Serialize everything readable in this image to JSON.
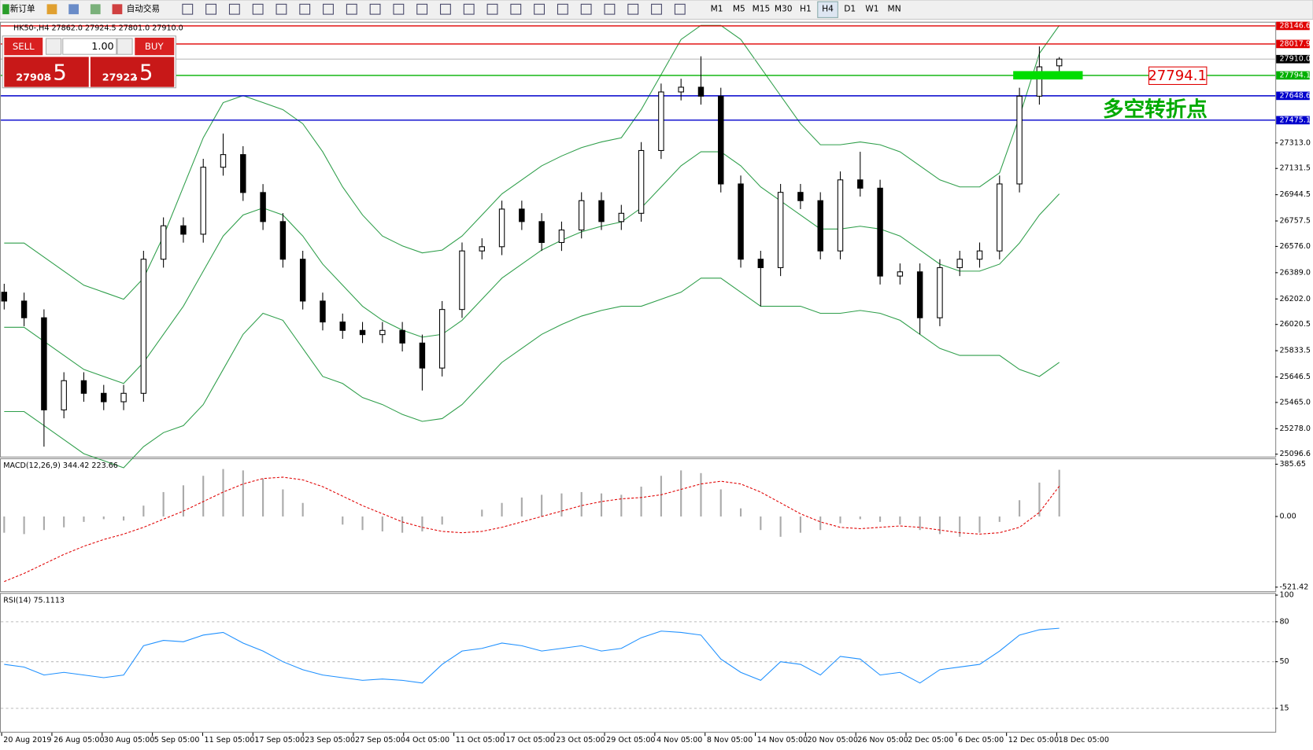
{
  "toolbar": {
    "new_order": "新订单",
    "auto_trading": "自动交易",
    "timeframes": [
      "M1",
      "M5",
      "M15",
      "M30",
      "H1",
      "H4",
      "D1",
      "W1",
      "MN"
    ]
  },
  "trade_panel": {
    "sell": "SELL",
    "buy": "BUY",
    "lot": "1.00",
    "bid_main": "27908",
    "bid_pips": ".5",
    "ask_main": "27922",
    "ask_pips": ".5"
  },
  "chart_data": [
    {
      "type": "candlestick",
      "title": "HK50-,H4  27862.0 27924.5 27801.0 27910.0",
      "x_labels": [
        "20 Aug 2019",
        "26 Aug 05:00",
        "30 Aug 05:00",
        "5 Sep 05:00",
        "11 Sep 05:00",
        "17 Sep 05:00",
        "23 Sep 05:00",
        "27 Sep 05:00",
        "4 Oct 05:00",
        "11 Oct 05:00",
        "17 Oct 05:00",
        "23 Oct 05:00",
        "29 Oct 05:00",
        "4 Nov 05:00",
        "8 Nov 05:00",
        "14 Nov 05:00",
        "20 Nov 05:00",
        "26 Nov 05:00",
        "2 Dec 05:00",
        "6 Dec 05:00",
        "12 Dec 05:00",
        "18 Dec 05:00"
      ],
      "open": [
        26250,
        26187,
        26068,
        25412,
        25620,
        25530,
        25470,
        25530,
        26485,
        26723,
        26663,
        27140,
        27230,
        26960,
        26753,
        26485,
        26187,
        26038,
        25978,
        25948,
        25978,
        25888,
        25710,
        26127,
        26544,
        26574,
        26842,
        26753,
        26604,
        26693,
        26902,
        26753,
        26812,
        27259,
        27676,
        27710,
        27646,
        27021,
        26485,
        26425,
        26961,
        26902,
        26544,
        27050,
        26991,
        26365,
        26395,
        26068,
        26425,
        26485,
        26544,
        27021,
        27646,
        27862
      ],
      "high": [
        26310,
        26247,
        26128,
        25680,
        25680,
        25590,
        25590,
        26545,
        26783,
        26783,
        27200,
        27380,
        27290,
        27020,
        26813,
        26545,
        26247,
        26098,
        26038,
        26038,
        26038,
        25948,
        26187,
        26604,
        26634,
        26902,
        26902,
        26813,
        26753,
        26962,
        26962,
        26872,
        27319,
        27736,
        27770,
        27930,
        27706,
        27081,
        26545,
        27021,
        27021,
        26962,
        27110,
        27250,
        27051,
        26455,
        26455,
        26485,
        26545,
        26604,
        27081,
        27706,
        28000,
        27924.5
      ],
      "low": [
        26127,
        26008,
        25150,
        25352,
        25470,
        25410,
        25410,
        25470,
        26425,
        26603,
        26603,
        27080,
        26900,
        26693,
        26425,
        26127,
        25978,
        25918,
        25888,
        25888,
        25828,
        25550,
        25650,
        26067,
        26484,
        26514,
        26693,
        26544,
        26544,
        26633,
        26693,
        26693,
        26752,
        27199,
        27616,
        27586,
        26961,
        26425,
        26150,
        26365,
        26842,
        26484,
        26484,
        26931,
        26305,
        26305,
        25950,
        26008,
        26365,
        26425,
        26484,
        26961,
        27586,
        27801
      ],
      "close": [
        26187,
        26068,
        25412,
        25620,
        25530,
        25470,
        25530,
        26485,
        26723,
        26663,
        27140,
        27230,
        26960,
        26753,
        26485,
        26187,
        26038,
        25978,
        25948,
        25978,
        25888,
        25710,
        26127,
        26544,
        26574,
        26842,
        26753,
        26604,
        26693,
        26902,
        26753,
        26812,
        27259,
        27676,
        27710,
        27646,
        27021,
        26485,
        26425,
        26961,
        26902,
        26544,
        27050,
        26991,
        26365,
        26395,
        26068,
        26425,
        26485,
        26544,
        27021,
        27646,
        27855,
        27910
      ],
      "bands": {
        "color": "#2e9e4a",
        "upper": [
          26600,
          26600,
          26500,
          26400,
          26300,
          26250,
          26200,
          26350,
          26650,
          27000,
          27350,
          27600,
          27650,
          27600,
          27550,
          27450,
          27250,
          27000,
          26800,
          26650,
          26580,
          26530,
          26550,
          26650,
          26800,
          26950,
          27050,
          27150,
          27220,
          27280,
          27320,
          27350,
          27550,
          27800,
          28050,
          28150,
          28150,
          28050,
          27850,
          27650,
          27450,
          27300,
          27300,
          27320,
          27300,
          27250,
          27150,
          27050,
          27000,
          27000,
          27100,
          27500,
          27950,
          28150
        ],
        "middle": [
          26000,
          26000,
          25900,
          25800,
          25700,
          25650,
          25600,
          25750,
          25950,
          26150,
          26400,
          26650,
          26800,
          26850,
          26800,
          26650,
          26450,
          26300,
          26150,
          26050,
          25980,
          25930,
          25950,
          26050,
          26200,
          26350,
          26450,
          26550,
          26620,
          26680,
          26720,
          26750,
          26850,
          27000,
          27150,
          27250,
          27250,
          27150,
          27000,
          26900,
          26800,
          26700,
          26700,
          26720,
          26700,
          26650,
          26550,
          26450,
          26400,
          26400,
          26450,
          26600,
          26800,
          26950
        ],
        "lower": [
          25400,
          25400,
          25300,
          25200,
          25100,
          25050,
          25000,
          25150,
          25250,
          25300,
          25450,
          25700,
          25950,
          26100,
          26050,
          25850,
          25650,
          25600,
          25500,
          25450,
          25380,
          25330,
          25350,
          25450,
          25600,
          25750,
          25850,
          25950,
          26020,
          26080,
          26120,
          26150,
          26150,
          26200,
          26250,
          26350,
          26350,
          26250,
          26150,
          26150,
          26150,
          26100,
          26100,
          26120,
          26100,
          26050,
          25950,
          25850,
          25800,
          25800,
          25800,
          25700,
          25650,
          25750
        ]
      },
      "ylim": [
        25079,
        28170
      ],
      "yticks": [
        {
          "value": 27313,
          "label": "27313.0"
        },
        27131.5,
        26944.5,
        26757.5,
        {
          "value": 26576,
          "label": "26576.0"
        },
        {
          "value": 26389,
          "label": "26389.0"
        },
        {
          "value": 26202,
          "label": "26202.0"
        },
        26020.5,
        25833.5,
        25646.5,
        {
          "value": 25465,
          "label": "25465.0"
        },
        {
          "value": 25278,
          "label": "25278.0"
        },
        25096.6
      ],
      "levels": [
        {
          "value": 28146.6,
          "color": "#e00000"
        },
        {
          "value": 28017.9,
          "color": "#e00000"
        },
        {
          "value": 27794.1,
          "color": "#00b000"
        },
        {
          "value": 27648.6,
          "color": "#0000cc"
        },
        {
          "value": 27475.1,
          "color": "#0000cc"
        }
      ],
      "last": {
        "value": 27910,
        "label": "27910.0"
      },
      "annotations": {
        "price_box": "27794.1",
        "note": "多空转折点"
      }
    },
    {
      "type": "macd",
      "title": "MACD(12,26,9) 344.42 223.66",
      "histogram": [
        -120,
        -130,
        -100,
        -80,
        -40,
        -20,
        -30,
        80,
        180,
        230,
        300,
        350,
        340,
        280,
        200,
        100,
        0,
        -60,
        -100,
        -110,
        -120,
        -110,
        -60,
        0,
        50,
        100,
        140,
        160,
        170,
        180,
        170,
        160,
        220,
        300,
        340,
        320,
        200,
        60,
        -100,
        -150,
        -120,
        -100,
        -50,
        -20,
        -40,
        -60,
        -100,
        -130,
        -150,
        -120,
        -40,
        120,
        250,
        344.42
      ],
      "signal": [
        -480,
        -420,
        -350,
        -280,
        -220,
        -170,
        -130,
        -80,
        -20,
        40,
        110,
        180,
        240,
        280,
        290,
        270,
        220,
        150,
        80,
        20,
        -40,
        -80,
        -110,
        -120,
        -110,
        -80,
        -40,
        0,
        40,
        80,
        110,
        130,
        140,
        160,
        200,
        240,
        260,
        240,
        180,
        100,
        20,
        -40,
        -80,
        -90,
        -80,
        -70,
        -80,
        -100,
        -120,
        -130,
        -120,
        -80,
        30,
        223.66
      ],
      "ylim": [
        -552,
        423
      ],
      "yticks": [
        385.65,
        {
          "value": 0,
          "label": "0.00"
        },
        -521.42
      ]
    },
    {
      "type": "line",
      "title": "RSI(14) 75.1113",
      "color": "#1e90ff",
      "values": [
        48,
        46,
        40,
        42,
        40,
        38,
        40,
        62,
        66,
        65,
        70,
        72,
        64,
        58,
        50,
        44,
        40,
        38,
        36,
        37,
        36,
        34,
        48,
        58,
        60,
        64,
        62,
        58,
        60,
        62,
        58,
        60,
        68,
        73,
        72,
        70,
        52,
        42,
        36,
        50,
        48,
        40,
        54,
        52,
        40,
        42,
        34,
        44,
        46,
        48,
        58,
        70,
        74,
        75.1113
      ],
      "ylim": [
        -2,
        101
      ],
      "yticks": [
        100,
        80,
        50,
        15
      ],
      "levels": [
        80,
        50,
        15
      ]
    }
  ]
}
